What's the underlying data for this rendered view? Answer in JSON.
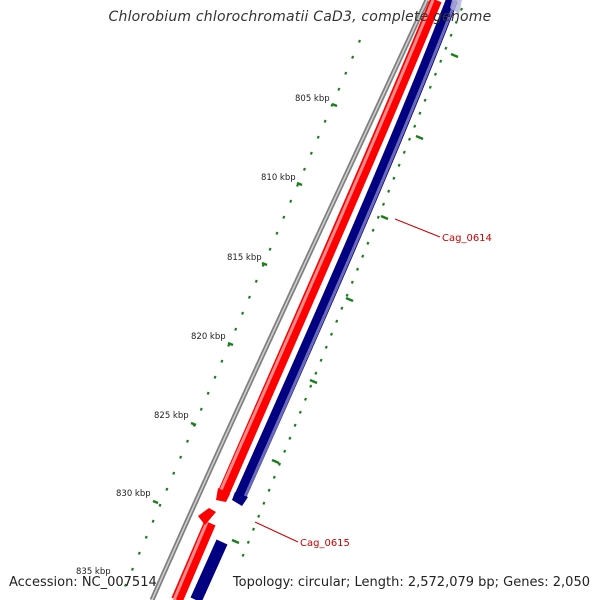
{
  "title": "Chlorobium chlorochromatii CaD3, complete genome",
  "footer": {
    "accession": "Accession: NC_007514",
    "summary": "Topology: circular; Length: 2,572,079 bp; Genes: 2,050"
  },
  "colors": {
    "forward_strand": "#ff0000",
    "reverse_strand": "#000080",
    "backbone": "#808080",
    "ticks": "#1a7f1a",
    "gene_label": "#cc0000"
  },
  "scale_labels": [
    "805 kbp",
    "810 kbp",
    "815 kbp",
    "820 kbp",
    "825 kbp",
    "830 kbp",
    "835 kbp"
  ],
  "gene_labels": [
    "Cag_0614",
    "Cag_0615"
  ]
}
